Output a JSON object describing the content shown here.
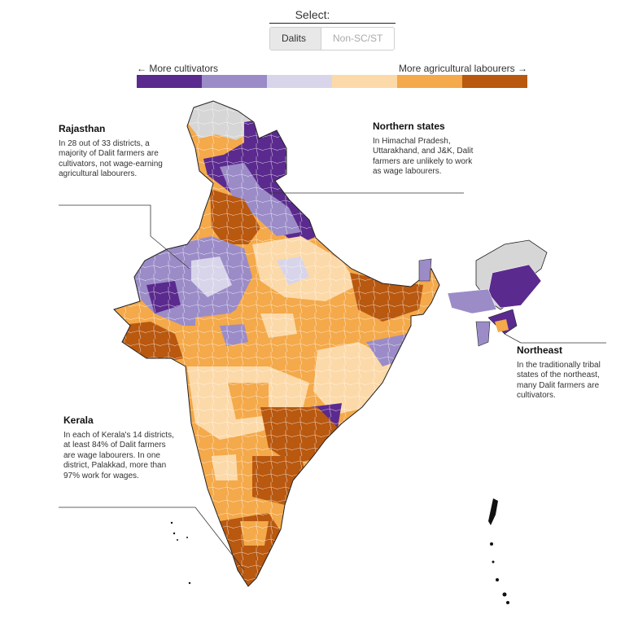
{
  "selector": {
    "label": "Select:",
    "options": [
      "Dalits",
      "Non-SC/ST"
    ],
    "selected": "Dalits"
  },
  "legend": {
    "left_label": "← More cultivators",
    "right_label": "More agricultural labourers →",
    "colors": [
      "#5b2a8e",
      "#9b8cc8",
      "#d8d5ea",
      "#fcd9a8",
      "#f4a94a",
      "#b9580f"
    ]
  },
  "notes": {
    "rajasthan": {
      "title": "Rajasthan",
      "text": "In 28 out of 33 districts, a majority of Dalit farmers are cultivators, not wage-earning agricultural labourers."
    },
    "northern": {
      "title": "Northern states",
      "text": "In Himachal Pradesh, Uttarakhand, and J&K, Dalit farmers are unlikely to work as wage labourers."
    },
    "northeast": {
      "title": "Northeast",
      "text": "In the traditionally tribal states of the northeast, many Dalit farmers are cultivators."
    },
    "kerala": {
      "title": "Kerala",
      "text": "In each of Kerala's 14 districts, at least 84% of Dalit farmers are wage labourers. In one district, Palakkad, more than 97% work for wages."
    }
  },
  "map_colors": {
    "no_data": "#d6d6d6",
    "district_border": "#ffffff",
    "state_border": "#222222"
  }
}
